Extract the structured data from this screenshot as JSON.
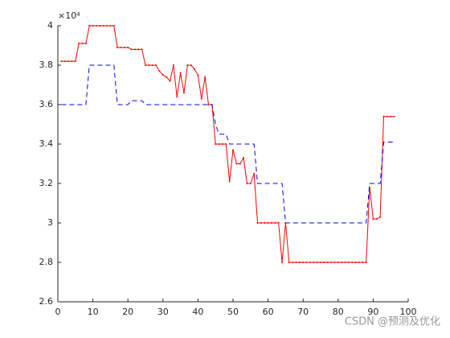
{
  "chart_data": {
    "type": "line",
    "y_exponent": "×10⁴",
    "watermark": "CSDN @预测及优化",
    "x": [
      1,
      2,
      3,
      4,
      5,
      6,
      7,
      8,
      9,
      10,
      11,
      12,
      13,
      14,
      15,
      16,
      17,
      18,
      19,
      20,
      21,
      22,
      23,
      24,
      25,
      26,
      27,
      28,
      29,
      30,
      31,
      32,
      33,
      34,
      35,
      36,
      37,
      38,
      39,
      40,
      41,
      42,
      43,
      44,
      45,
      46,
      47,
      48,
      49,
      50,
      51,
      52,
      53,
      54,
      55,
      56,
      57,
      58,
      59,
      60,
      61,
      62,
      63,
      64,
      65,
      66,
      67,
      68,
      69,
      70,
      71,
      72,
      73,
      74,
      75,
      76,
      77,
      78,
      79,
      80,
      81,
      82,
      83,
      84,
      85,
      86,
      87,
      88,
      89,
      90,
      91,
      92,
      93,
      94,
      95,
      96
    ],
    "series": [
      {
        "color": "#ff0000",
        "dash": "solid",
        "markers": true,
        "values": [
          38200,
          38200,
          38200,
          38200,
          38200,
          39100,
          39100,
          39100,
          40000,
          40000,
          40000,
          40000,
          40000,
          40000,
          40000,
          40000,
          38900,
          38900,
          38900,
          38900,
          38800,
          38800,
          38800,
          38800,
          38000,
          38000,
          38000,
          38000,
          37700,
          37500,
          37400,
          37200,
          38000,
          36400,
          37600,
          36600,
          38000,
          38000,
          37800,
          37500,
          36300,
          37400,
          36000,
          36000,
          34000,
          34000,
          34000,
          34000,
          32100,
          33700,
          33000,
          33000,
          33300,
          32000,
          32000,
          32500,
          30000,
          30000,
          30000,
          30000,
          30000,
          30000,
          30000,
          28000,
          30000,
          28000,
          28000,
          28000,
          28000,
          28000,
          28000,
          28000,
          28000,
          28000,
          28000,
          28000,
          28000,
          28000,
          28000,
          28000,
          28000,
          28000,
          28000,
          28000,
          28000,
          28000,
          28000,
          28000,
          31800,
          30200,
          30200,
          30300,
          35400,
          35400,
          35400,
          35400
        ]
      },
      {
        "color": "#0000ff",
        "dash": "dashed",
        "markers": false,
        "values": [
          36000,
          36000,
          36000,
          36000,
          36000,
          36000,
          36000,
          36000,
          38000,
          38000,
          38000,
          38000,
          38000,
          38000,
          38000,
          38000,
          36000,
          36000,
          36000,
          36000,
          36200,
          36200,
          36200,
          36200,
          36000,
          36000,
          36000,
          36000,
          36000,
          36000,
          36000,
          36000,
          36000,
          36000,
          36000,
          36000,
          36000,
          36000,
          36000,
          36000,
          36000,
          36000,
          36000,
          36000,
          35000,
          34500,
          34500,
          34500,
          34000,
          34000,
          34000,
          34000,
          34000,
          34000,
          34000,
          34000,
          32000,
          32000,
          32000,
          32000,
          32000,
          32000,
          32000,
          32000,
          30000,
          30000,
          30000,
          30000,
          30000,
          30000,
          30000,
          30000,
          30000,
          30000,
          30000,
          30000,
          30000,
          30000,
          30000,
          30000,
          30000,
          30000,
          30000,
          30000,
          30000,
          30000,
          30000,
          30000,
          32000,
          32000,
          32000,
          32000,
          34100,
          34100,
          34100,
          34100
        ]
      }
    ],
    "xlim": [
      0,
      100
    ],
    "xticks": [
      0,
      10,
      20,
      30,
      40,
      50,
      60,
      70,
      80,
      90,
      100
    ],
    "ylim": [
      26000,
      40000
    ],
    "yticks": [
      {
        "value": 26000,
        "label": "2.6"
      },
      {
        "value": 28000,
        "label": "2.8"
      },
      {
        "value": 30000,
        "label": "3"
      },
      {
        "value": 32000,
        "label": "3.2"
      },
      {
        "value": 34000,
        "label": "3.4"
      },
      {
        "value": 36000,
        "label": "3.6"
      },
      {
        "value": 38000,
        "label": "3.8"
      },
      {
        "value": 40000,
        "label": "4"
      }
    ]
  }
}
